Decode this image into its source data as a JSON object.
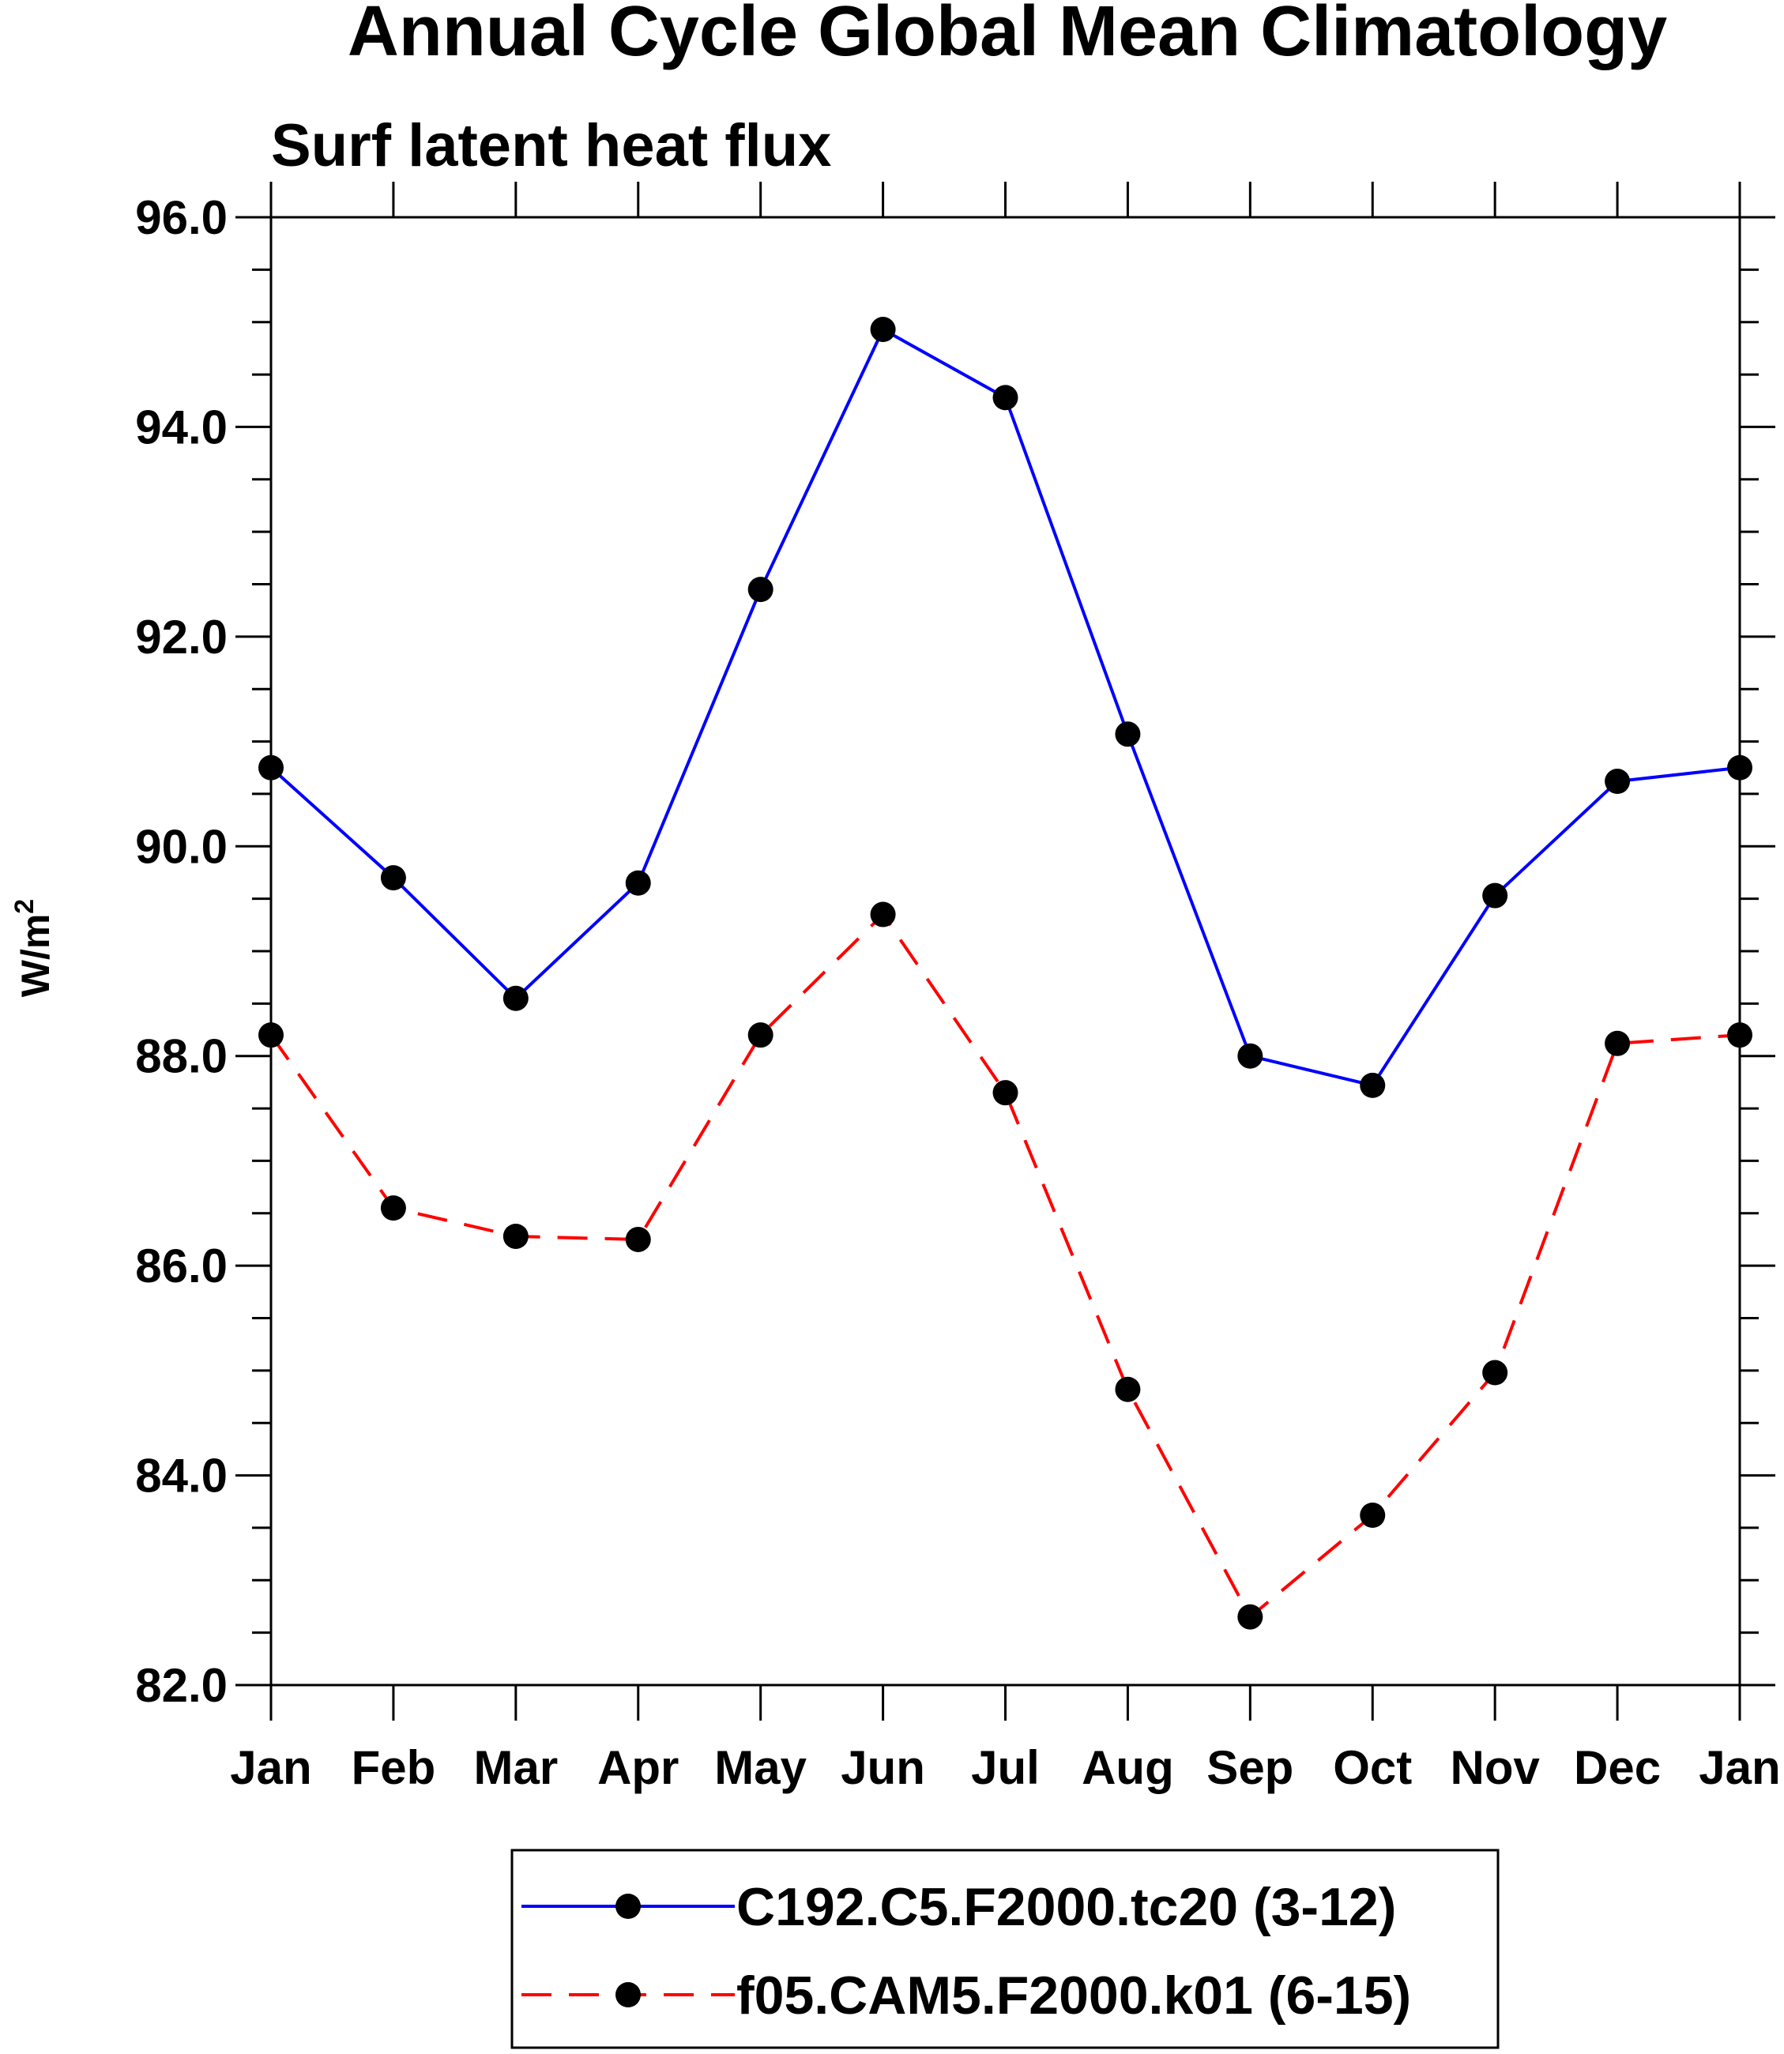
{
  "chart_data": {
    "type": "line",
    "title": "Annual Cycle Global Mean Climatology",
    "subtitle": "Surf latent heat flux",
    "xlabel": "",
    "ylabel": "W/m",
    "ylabel_superscript": "2",
    "categories": [
      "Jan",
      "Feb",
      "Mar",
      "Apr",
      "May",
      "Jun",
      "Jul",
      "Aug",
      "Sep",
      "Oct",
      "Nov",
      "Dec",
      "Jan"
    ],
    "ylim": [
      82.0,
      96.0
    ],
    "yticks": [
      "82.0",
      "84.0",
      "86.0",
      "88.0",
      "90.0",
      "92.0",
      "94.0",
      "96.0"
    ],
    "ytick_values": [
      82,
      84,
      86,
      88,
      90,
      92,
      94,
      96
    ],
    "y_minor_step": 0.5,
    "grid": false,
    "legend_position": "bottom",
    "series": [
      {
        "name": "C192.C5.F2000.tc20 (3-12)",
        "color": "#0000ff",
        "line_style": "solid",
        "marker": "circle",
        "values": [
          90.75,
          89.7,
          88.55,
          89.65,
          92.45,
          94.93,
          94.28,
          91.07,
          88.0,
          87.72,
          89.53,
          90.62,
          90.75
        ]
      },
      {
        "name": "f05.CAM5.F2000.k01 (6-15)",
        "color": "#ff0000",
        "line_style": "dashed",
        "marker": "circle",
        "values": [
          88.2,
          86.55,
          86.28,
          86.25,
          88.2,
          89.35,
          87.65,
          84.82,
          82.65,
          83.62,
          84.98,
          88.12,
          88.2
        ]
      }
    ]
  }
}
